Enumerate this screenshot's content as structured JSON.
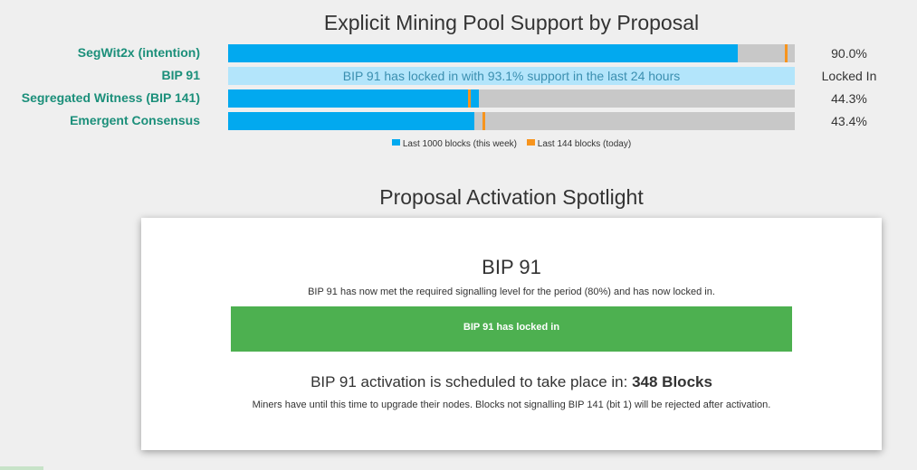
{
  "chart_data": {
    "type": "bar",
    "orientation": "horizontal",
    "title": "Explicit Mining Pool Support by Proposal",
    "xlim": [
      0,
      100
    ],
    "grid": false,
    "legend_position": "bottom",
    "categories": [
      "SegWit2x (intention)",
      "BIP 91",
      "Segregated Witness (BIP 141)",
      "Emergent Consensus"
    ],
    "series": [
      {
        "name": "Last 1000 blocks (this week)",
        "color": "#02a9ef",
        "values": [
          90.0,
          null,
          44.3,
          43.4
        ]
      },
      {
        "name": "Last 144 blocks (today)",
        "color": "#f7941d",
        "values": [
          98.5,
          null,
          42.6,
          45.2
        ]
      }
    ],
    "value_labels": [
      "90.0%",
      "Locked In",
      "44.3%",
      "43.4%"
    ],
    "annotations": [
      {
        "category": "BIP 91",
        "text": "BIP 91 has locked in with 93.1% support in the last 24 hours"
      }
    ]
  },
  "spotlight": {
    "heading": "Proposal Activation Spotlight",
    "card_title": "BIP 91",
    "description": "BIP 91 has now met the required signalling level for the period (80%) and has now locked in.",
    "status": "BIP 91 has locked in",
    "status_color": "#4db050",
    "schedule_prefix": "BIP 91 activation is scheduled to take place in: ",
    "schedule_value": "348 Blocks",
    "note": "Miners have until this time to upgrade their nodes. Blocks not signalling BIP 141 (bit 1) will be rejected after activation."
  }
}
